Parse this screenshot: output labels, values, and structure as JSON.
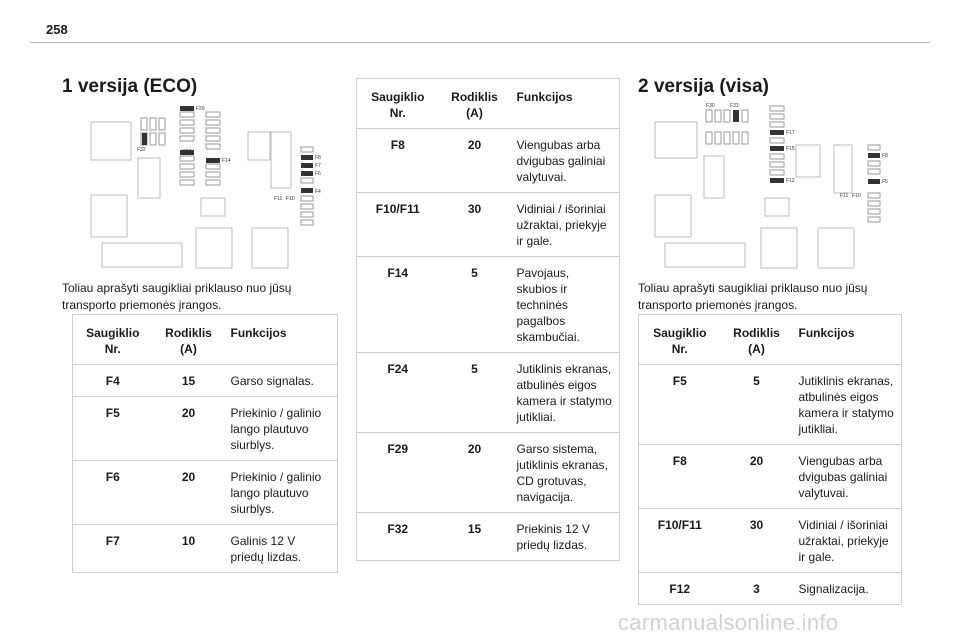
{
  "page_number": "258",
  "section1": {
    "title": "1 versija (ECO)",
    "paragraph": "Toliau aprašyti saugikliai priklauso nuo jūsų transporto priemonės įrangos.",
    "diagram_labels": [
      "F29",
      "F32",
      "F24",
      "F14",
      "F8",
      "F7",
      "F6",
      "F4",
      "F11",
      "F10"
    ]
  },
  "section2": {
    "title": "2 versija (visa)",
    "paragraph": "Toliau aprašyti saugikliai priklauso nuo jūsų transporto priemonės įrangos.",
    "diagram_labels": [
      "F30",
      "F33",
      "F17",
      "F15",
      "F12",
      "F8",
      "F5",
      "F11",
      "F10"
    ]
  },
  "headers": {
    "no": "Saugiklio Nr.",
    "amp": "Rodiklis (A)",
    "fn": "Funkcijos"
  },
  "table1": [
    {
      "no": "F4",
      "amp": "15",
      "fn": "Garso signalas."
    },
    {
      "no": "F5",
      "amp": "20",
      "fn": "Priekinio / galinio lango plautuvo siurblys."
    },
    {
      "no": "F6",
      "amp": "20",
      "fn": "Priekinio / galinio lango plautuvo siurblys."
    },
    {
      "no": "F7",
      "amp": "10",
      "fn": "Galinis 12 V priedų lizdas."
    }
  ],
  "table2": [
    {
      "no": "F8",
      "amp": "20",
      "fn": "Viengubas arba dvigubas galiniai valytuvai."
    },
    {
      "no": "F10/F11",
      "amp": "30",
      "fn": "Vidiniai / išoriniai užraktai, priekyje ir gale."
    },
    {
      "no": "F14",
      "amp": "5",
      "fn": "Pavojaus, skubios ir techninės pagalbos skambučiai."
    },
    {
      "no": "F24",
      "amp": "5",
      "fn": "Jutiklinis ekranas, atbulinės eigos kamera ir statymo jutikliai."
    },
    {
      "no": "F29",
      "amp": "20",
      "fn": "Garso sistema, jutiklinis ekranas, CD grotuvas, navigacija."
    },
    {
      "no": "F32",
      "amp": "15",
      "fn": "Priekinis 12 V priedų lizdas."
    }
  ],
  "table3": [
    {
      "no": "F5",
      "amp": "5",
      "fn": "Jutiklinis ekranas, atbulinės eigos kamera ir statymo jutikliai."
    },
    {
      "no": "F8",
      "amp": "20",
      "fn": "Viengubas arba dvigubas galiniai valytuvai."
    },
    {
      "no": "F10/F11",
      "amp": "30",
      "fn": "Vidiniai / išoriniai užraktai, priekyje ir gale."
    },
    {
      "no": "F12",
      "amp": "3",
      "fn": "Signalizacija."
    }
  ],
  "watermark": "carmanualsonline.info"
}
